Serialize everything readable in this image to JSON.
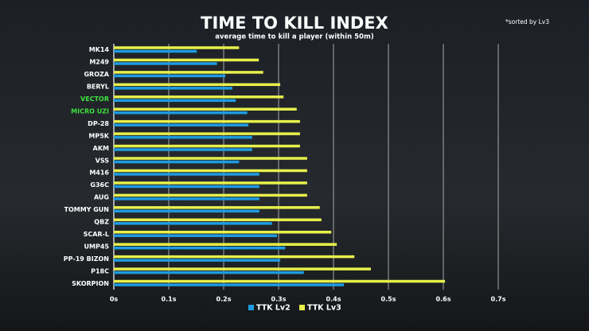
{
  "chart_data": {
    "type": "hbar",
    "title": "TIME TO KILL INDEX",
    "subtitle": "average time to kill a player (within 50m)",
    "note": "*sorted by Lv3",
    "categories": [
      "MK14",
      "M249",
      "GROZA",
      "BERYL",
      "VECTOR",
      "MICRO UZI",
      "DP-28",
      "MP5K",
      "AKM",
      "VSS",
      "M416",
      "G36C",
      "AUG",
      "TOMMY GUN",
      "QBZ",
      "SCAR-L",
      "UMP45",
      "PP-19 BIZON",
      "P18C",
      "SKORPION"
    ],
    "category_colors": [
      "#ffffff",
      "#ffffff",
      "#ffffff",
      "#ffffff",
      "#3fe23f",
      "#3fe23f",
      "#ffffff",
      "#ffffff",
      "#ffffff",
      "#ffffff",
      "#ffffff",
      "#ffffff",
      "#ffffff",
      "#ffffff",
      "#ffffff",
      "#ffffff",
      "#ffffff",
      "#ffffff",
      "#ffffff",
      "#ffffff"
    ],
    "series": [
      {
        "name": "TTK Lv2",
        "color": "#1e9be0",
        "values": [
          0.151,
          0.188,
          0.203,
          0.216,
          0.222,
          0.243,
          0.245,
          0.252,
          0.252,
          0.228,
          0.265,
          0.265,
          0.265,
          0.265,
          0.288,
          0.297,
          0.312,
          0.303,
          0.346,
          0.419
        ]
      },
      {
        "name": "TTK Lv3",
        "color": "#e6f04a",
        "values": [
          0.228,
          0.264,
          0.272,
          0.303,
          0.309,
          0.333,
          0.339,
          0.339,
          0.339,
          0.352,
          0.352,
          0.352,
          0.352,
          0.375,
          0.378,
          0.396,
          0.406,
          0.438,
          0.468,
          0.603
        ]
      }
    ],
    "xlim": [
      0,
      0.7
    ],
    "xticks": [
      {
        "value": 0,
        "label": "0s"
      },
      {
        "value": 0.1,
        "label": "0.1s"
      },
      {
        "value": 0.2,
        "label": "0.2s"
      },
      {
        "value": 0.3,
        "label": "0.3s"
      },
      {
        "value": 0.4,
        "label": "0.4s"
      },
      {
        "value": 0.5,
        "label": "0.5s"
      },
      {
        "value": 0.6,
        "label": "0.6s"
      },
      {
        "value": 0.7,
        "label": "0.7s"
      }
    ],
    "grid": true
  }
}
